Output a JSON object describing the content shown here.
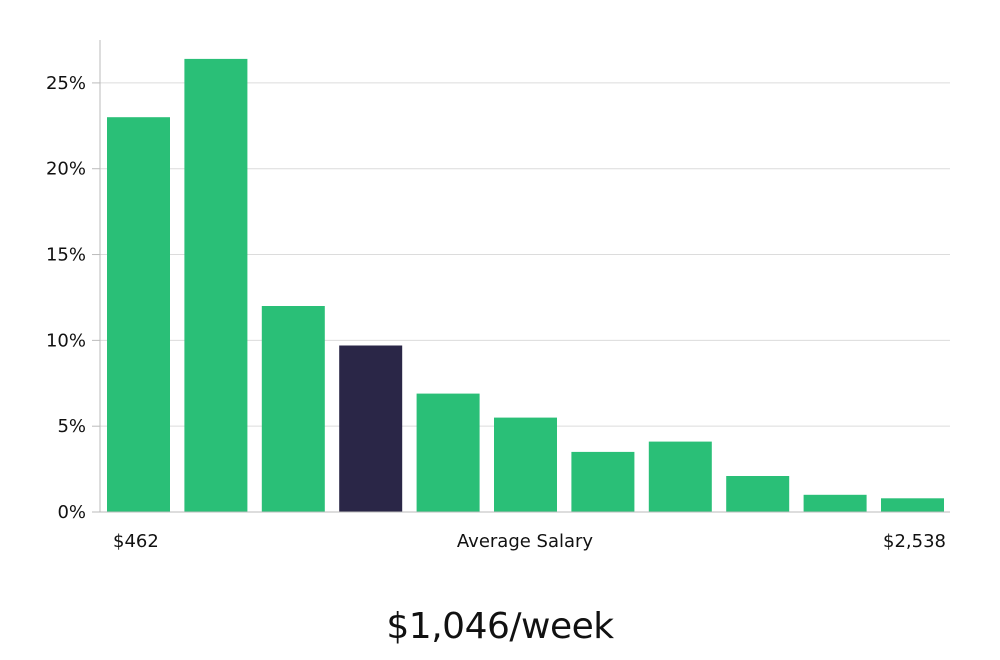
{
  "chart_data": {
    "type": "bar",
    "categories": [
      "1",
      "2",
      "3",
      "4",
      "5",
      "6",
      "7",
      "8",
      "9",
      "10",
      "11"
    ],
    "values": [
      23.0,
      26.4,
      12.0,
      9.7,
      6.9,
      5.5,
      3.5,
      4.1,
      2.1,
      1.0,
      0.8
    ],
    "highlight_index": 3,
    "ylim": [
      0,
      27.5
    ],
    "yticks": [
      0,
      5,
      10,
      15,
      20,
      25
    ],
    "ytick_labels": [
      "0%",
      "5%",
      "10%",
      "15%",
      "20%",
      "25%"
    ],
    "x_min_label": "$462",
    "x_max_label": "$2,538",
    "xlabel": "Average Salary",
    "grid": true,
    "colors": {
      "bar": "#2ABF77",
      "bar_highlight": "#2A2647",
      "grid": "#DCDCDC",
      "axis": "#BBBBBB"
    }
  },
  "summary": {
    "headline": "$1,046/week"
  }
}
